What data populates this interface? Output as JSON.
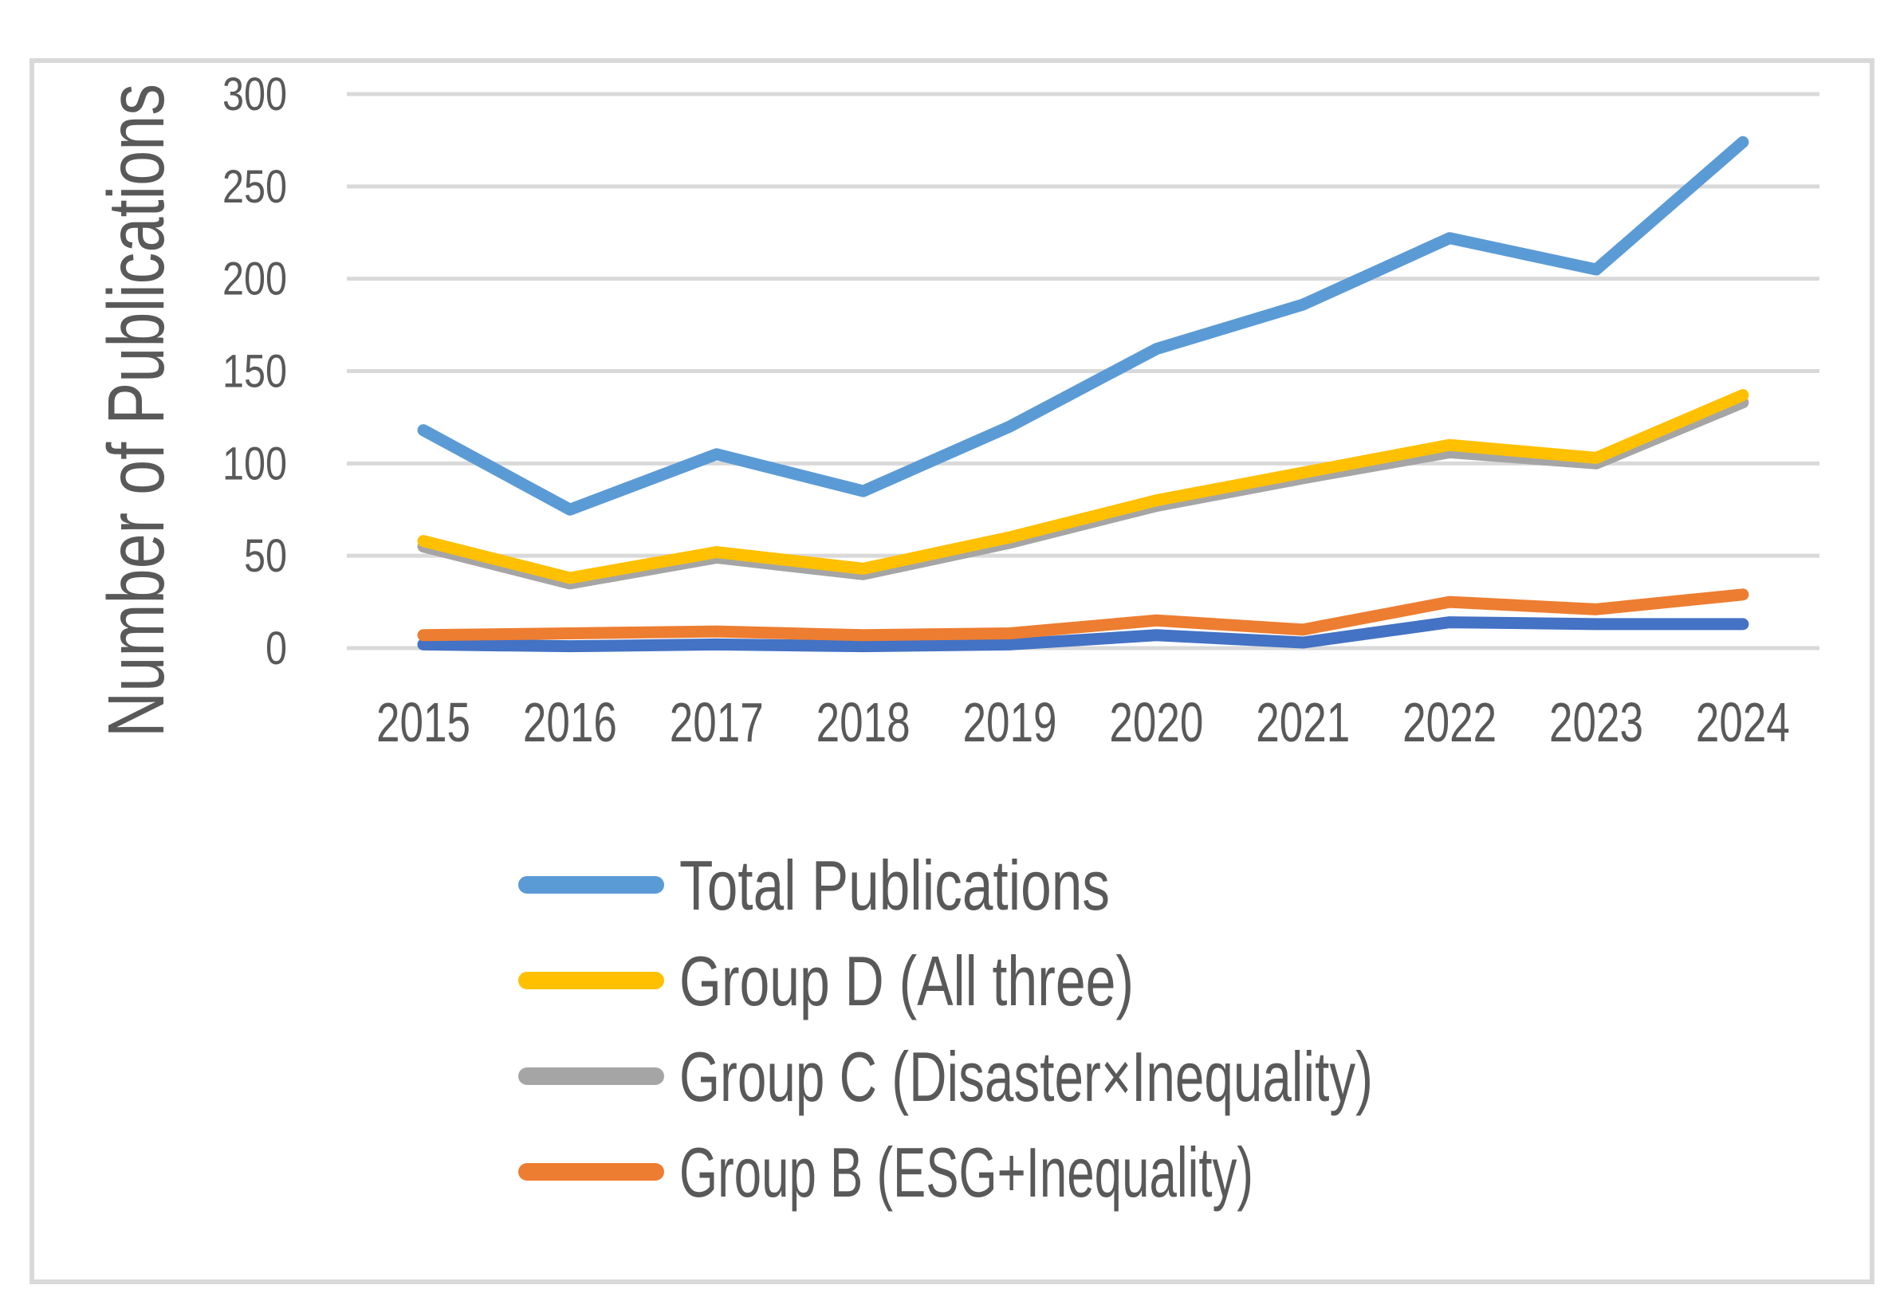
{
  "chart_data": {
    "type": "line",
    "title": "",
    "xlabel": "",
    "ylabel": "Number of Publications",
    "ylim": [
      0,
      300
    ],
    "y_ticks": [
      0,
      50,
      100,
      150,
      200,
      250,
      300
    ],
    "grid": "horizontal",
    "legend_position": "bottom-left",
    "categories": [
      "2015",
      "2016",
      "2017",
      "2018",
      "2019",
      "2020",
      "2021",
      "2022",
      "2023",
      "2024"
    ],
    "series": [
      {
        "name": "Total Publications",
        "color": "#5B9BD5",
        "legend_visible": true,
        "values": [
          118,
          75,
          105,
          85,
          120,
          162,
          186,
          222,
          205,
          274
        ]
      },
      {
        "name": "Group D (All three)",
        "color": "#FFC000",
        "legend_visible": true,
        "values": [
          58,
          38,
          52,
          43,
          60,
          80,
          95,
          110,
          103,
          137
        ]
      },
      {
        "name": "Group C (Disaster×Inequality)",
        "color": "#A5A5A5",
        "legend_visible": true,
        "values": [
          55,
          35,
          49,
          40,
          57,
          77,
          92,
          106,
          100,
          133
        ]
      },
      {
        "name": "Group B (ESG+Inequality)",
        "color": "#ED7D31",
        "legend_visible": true,
        "values": [
          7,
          8,
          9,
          7,
          8,
          15,
          10,
          25,
          21,
          29
        ]
      },
      {
        "name": "",
        "color": "#4472C4",
        "legend_visible": false,
        "values": [
          2,
          1,
          2,
          1,
          2,
          7,
          3,
          14,
          13,
          13
        ]
      }
    ]
  },
  "colors": {
    "gridline": "#D9D9D9",
    "chart_border": "#D9D9D9",
    "axis_text": "#595959"
  }
}
